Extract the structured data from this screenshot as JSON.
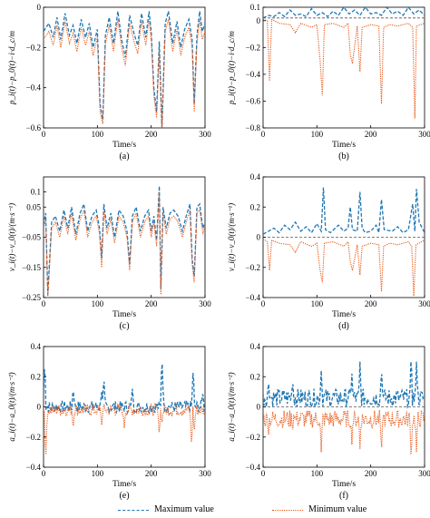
{
  "colors": {
    "max": "#1f77b4",
    "min": "#e8591a",
    "ref": "#555555"
  },
  "legend": [
    {
      "label": "Maximum value",
      "color": "#1f77b4",
      "dash": "dashed"
    },
    {
      "label": "Minimum value",
      "color": "#e8591a",
      "dash": "dotted"
    }
  ],
  "chart_data": [
    {
      "type": "line",
      "caption": "(a)",
      "xlabel": "Time/s",
      "ylabel": "p_i(t)−p_0(t)−i·d_c/m",
      "xlim": [
        0,
        300
      ],
      "ylim": [
        -0.6,
        0
      ],
      "xticks": [
        "0",
        "100",
        "200",
        "300"
      ],
      "xtick_values": [
        0,
        100,
        200,
        300
      ],
      "yticks": [
        "−0.6",
        "−0.4",
        "−0.2",
        "0"
      ],
      "ytick_values": [
        -0.6,
        -0.4,
        -0.2,
        0
      ],
      "series": [
        {
          "role": "max",
          "x": [
            0,
            10,
            18,
            25,
            32,
            40,
            48,
            55,
            62,
            70,
            78,
            85,
            92,
            100,
            105,
            110,
            115,
            122,
            130,
            138,
            145,
            152,
            160,
            168,
            175,
            182,
            190,
            196,
            200,
            205,
            210,
            215,
            220,
            226,
            232,
            240,
            248,
            255,
            262,
            270,
            276,
            280,
            285,
            290,
            295,
            300
          ],
          "y": [
            -0.12,
            -0.08,
            -0.15,
            -0.05,
            -0.16,
            -0.03,
            -0.14,
            -0.09,
            -0.18,
            -0.06,
            -0.15,
            -0.08,
            -0.2,
            -0.11,
            -0.48,
            -0.56,
            -0.14,
            -0.05,
            -0.18,
            -0.02,
            -0.16,
            -0.25,
            -0.04,
            -0.13,
            -0.19,
            -0.03,
            -0.15,
            -0.02,
            -0.12,
            -0.4,
            -0.52,
            -0.17,
            -0.6,
            -0.08,
            -0.02,
            -0.18,
            -0.07,
            -0.2,
            -0.11,
            -0.06,
            -0.16,
            -0.48,
            -0.14,
            -0.02,
            -0.12,
            -0.08
          ]
        },
        {
          "role": "min",
          "x": [
            0,
            10,
            18,
            25,
            32,
            40,
            48,
            55,
            62,
            70,
            78,
            85,
            92,
            100,
            105,
            110,
            115,
            122,
            130,
            138,
            145,
            152,
            160,
            168,
            175,
            182,
            190,
            196,
            200,
            205,
            210,
            215,
            220,
            226,
            232,
            240,
            248,
            255,
            262,
            270,
            276,
            280,
            285,
            290,
            295,
            300
          ],
          "y": [
            -0.16,
            -0.12,
            -0.19,
            -0.09,
            -0.2,
            -0.07,
            -0.18,
            -0.13,
            -0.22,
            -0.1,
            -0.19,
            -0.12,
            -0.24,
            -0.15,
            -0.52,
            -0.58,
            -0.18,
            -0.09,
            -0.22,
            -0.06,
            -0.2,
            -0.29,
            -0.08,
            -0.17,
            -0.23,
            -0.07,
            -0.19,
            -0.06,
            -0.16,
            -0.44,
            -0.55,
            -0.21,
            -0.62,
            -0.12,
            -0.06,
            -0.22,
            -0.11,
            -0.24,
            -0.15,
            -0.1,
            -0.2,
            -0.52,
            -0.18,
            -0.06,
            -0.16,
            -0.12
          ]
        }
      ]
    },
    {
      "type": "line",
      "caption": "(b)",
      "xlabel": "Time/s",
      "ylabel": "p_i(t)−p_0(t)−i·d_c/m",
      "xlim": [
        0,
        300
      ],
      "ylim": [
        -0.8,
        0.1
      ],
      "xticks": [
        "0",
        "100",
        "200",
        "300"
      ],
      "xtick_values": [
        0,
        100,
        200,
        300
      ],
      "yticks": [
        "−0.8",
        "−0.6",
        "−0.4",
        "−0.2",
        "0",
        "0.1"
      ],
      "ytick_values": [
        -0.8,
        -0.6,
        -0.4,
        -0.2,
        0,
        0.1
      ],
      "series": [
        {
          "role": "max",
          "x": [
            0,
            10,
            20,
            30,
            40,
            50,
            60,
            70,
            80,
            90,
            100,
            110,
            120,
            130,
            140,
            150,
            160,
            170,
            180,
            190,
            200,
            210,
            220,
            230,
            240,
            250,
            260,
            270,
            280,
            290,
            300
          ],
          "y": [
            0.02,
            0.04,
            0.03,
            0.06,
            0.03,
            0.08,
            0.04,
            0.05,
            0.03,
            0.09,
            0.04,
            0.06,
            0.03,
            0.07,
            0.04,
            0.1,
            0.05,
            0.08,
            0.04,
            0.1,
            0.05,
            0.06,
            0.04,
            0.1,
            0.05,
            0.07,
            0.04,
            0.1,
            0.05,
            0.08,
            0.04
          ]
        },
        {
          "role": "min",
          "x": [
            0,
            8,
            12,
            16,
            30,
            50,
            60,
            70,
            90,
            100,
            106,
            110,
            114,
            130,
            150,
            158,
            162,
            166,
            175,
            180,
            184,
            200,
            215,
            220,
            224,
            235,
            250,
            270,
            278,
            282,
            285,
            300
          ],
          "y": [
            0.01,
            0.0,
            -0.45,
            0.01,
            -0.02,
            -0.03,
            -0.09,
            -0.02,
            -0.05,
            -0.03,
            -0.3,
            -0.56,
            -0.03,
            -0.02,
            -0.05,
            -0.02,
            -0.25,
            -0.32,
            -0.04,
            -0.38,
            -0.05,
            -0.03,
            -0.04,
            -0.62,
            -0.05,
            -0.03,
            -0.04,
            -0.02,
            -0.05,
            -0.73,
            -0.04,
            -0.02
          ]
        }
      ],
      "reference_line": {
        "y": 0.02
      }
    },
    {
      "type": "line",
      "caption": "(c)",
      "xlabel": "Time/s",
      "ylabel": "v_i(t)−v_0(t)/(m·s⁻¹)",
      "xlim": [
        0,
        300
      ],
      "ylim": [
        -0.25,
        0.15
      ],
      "xticks": [
        "0",
        "100",
        "200",
        "300"
      ],
      "xtick_values": [
        0,
        100,
        200,
        300
      ],
      "yticks": [
        "−0.25",
        "−0.15",
        "−0.05",
        "0.05",
        "0.1"
      ],
      "ytick_values": [
        -0.25,
        -0.15,
        -0.05,
        0.05,
        0.1
      ],
      "series": [
        {
          "role": "max",
          "x": [
            0,
            4,
            8,
            15,
            22,
            30,
            38,
            45,
            52,
            60,
            68,
            75,
            82,
            90,
            98,
            104,
            108,
            112,
            118,
            125,
            132,
            140,
            148,
            155,
            160,
            165,
            172,
            180,
            188,
            195,
            200,
            205,
            210,
            215,
            218,
            222,
            228,
            235,
            242,
            250,
            258,
            265,
            272,
            276,
            280,
            285,
            290,
            296,
            300
          ],
          "y": [
            -0.01,
            0.03,
            -0.24,
            0.0,
            0.02,
            -0.03,
            0.04,
            -0.02,
            0.05,
            -0.04,
            0.03,
            0.06,
            -0.03,
            0.02,
            0.04,
            -0.02,
            -0.12,
            0.06,
            -0.02,
            0.03,
            -0.05,
            0.04,
            0.02,
            -0.03,
            -0.14,
            0.02,
            0.05,
            -0.03,
            0.02,
            0.04,
            -0.03,
            0.02,
            -0.06,
            0.12,
            -0.22,
            0.05,
            -0.02,
            0.03,
            0.04,
            0.02,
            -0.03,
            0.02,
            0.06,
            -0.12,
            -0.18,
            0.05,
            0.06,
            -0.02,
            0.0
          ]
        },
        {
          "role": "min",
          "x": [
            0,
            4,
            8,
            15,
            22,
            30,
            38,
            45,
            52,
            60,
            68,
            75,
            82,
            90,
            98,
            104,
            108,
            112,
            118,
            125,
            132,
            140,
            148,
            155,
            160,
            165,
            172,
            180,
            188,
            195,
            200,
            205,
            210,
            215,
            218,
            222,
            228,
            235,
            242,
            250,
            258,
            265,
            272,
            276,
            280,
            285,
            290,
            296,
            300
          ],
          "y": [
            -0.02,
            0.01,
            -0.25,
            -0.02,
            0.0,
            -0.05,
            0.02,
            -0.04,
            0.03,
            -0.06,
            0.01,
            0.04,
            -0.05,
            0.0,
            0.02,
            -0.04,
            -0.15,
            0.04,
            -0.04,
            0.01,
            -0.07,
            0.02,
            0.0,
            -0.05,
            -0.16,
            0.0,
            0.03,
            -0.05,
            0.0,
            0.02,
            -0.05,
            0.0,
            -0.08,
            0.1,
            -0.24,
            0.03,
            -0.04,
            0.01,
            0.02,
            0.0,
            -0.05,
            0.0,
            0.04,
            -0.14,
            -0.2,
            0.03,
            0.04,
            -0.04,
            -0.01
          ]
        }
      ]
    },
    {
      "type": "line",
      "caption": "(d)",
      "xlabel": "Time/s",
      "ylabel": "v_i(t)−v_0(t)/(m·s⁻¹)",
      "xlim": [
        0,
        300
      ],
      "ylim": [
        -0.4,
        0.4
      ],
      "xticks": [
        "0",
        "100",
        "200",
        "300"
      ],
      "xtick_values": [
        0,
        100,
        200,
        300
      ],
      "yticks": [
        "−0.4",
        "−0.2",
        "0",
        "0.2",
        "0.4"
      ],
      "ytick_values": [
        -0.4,
        -0.2,
        0,
        0.2,
        0.4
      ],
      "series": [
        {
          "role": "max",
          "x": [
            0,
            10,
            20,
            30,
            40,
            50,
            60,
            70,
            80,
            90,
            100,
            108,
            112,
            116,
            125,
            140,
            150,
            158,
            162,
            166,
            175,
            180,
            184,
            190,
            200,
            210,
            215,
            220,
            225,
            240,
            250,
            260,
            270,
            278,
            282,
            285,
            290,
            300
          ],
          "y": [
            0.02,
            0.04,
            0.06,
            0.03,
            0.08,
            0.05,
            0.1,
            0.04,
            0.07,
            0.03,
            0.09,
            0.04,
            0.33,
            0.05,
            0.03,
            0.08,
            0.04,
            0.06,
            0.2,
            0.05,
            0.04,
            0.3,
            0.06,
            0.03,
            0.04,
            0.08,
            0.03,
            0.25,
            0.05,
            0.04,
            0.07,
            0.03,
            0.05,
            0.22,
            0.04,
            0.32,
            0.1,
            0.03
          ]
        },
        {
          "role": "min",
          "x": [
            0,
            8,
            12,
            16,
            30,
            50,
            60,
            70,
            90,
            100,
            106,
            110,
            114,
            130,
            150,
            158,
            162,
            166,
            175,
            180,
            184,
            200,
            215,
            220,
            224,
            235,
            250,
            270,
            276,
            280,
            284,
            300
          ],
          "y": [
            -0.01,
            -0.03,
            -0.22,
            -0.02,
            -0.04,
            -0.05,
            -0.1,
            -0.03,
            -0.06,
            -0.04,
            -0.22,
            -0.3,
            -0.04,
            -0.03,
            -0.06,
            -0.03,
            -0.16,
            -0.22,
            -0.05,
            -0.25,
            -0.06,
            -0.04,
            -0.05,
            -0.36,
            -0.06,
            -0.04,
            -0.05,
            -0.03,
            -0.06,
            -0.39,
            -0.05,
            -0.02
          ]
        }
      ],
      "reference_line": {
        "y": 0
      }
    },
    {
      "type": "line",
      "caption": "(e)",
      "xlabel": "Time/s",
      "ylabel": "a_i(t)−a_0(t)/(m·s⁻²)",
      "xlim": [
        0,
        300
      ],
      "ylim": [
        -0.4,
        0.4
      ],
      "xticks": [
        "0",
        "100",
        "200",
        "300"
      ],
      "xtick_values": [
        0,
        100,
        200,
        300
      ],
      "yticks": [
        "−0.4",
        "−0.2",
        "0",
        "0.2",
        "0.4"
      ],
      "ytick_values": [
        -0.4,
        -0.2,
        0,
        0.2,
        0.4
      ],
      "series": [
        {
          "role": "max",
          "noise": 0.04,
          "base": 0.0,
          "spikes_x": [
            2,
            55,
            108,
            112,
            165,
            220,
            278,
            296
          ],
          "spikes_y": [
            0.3,
            0.12,
            0.1,
            0.2,
            0.12,
            0.34,
            0.27,
            0.1
          ]
        },
        {
          "role": "min",
          "noise": 0.04,
          "base": -0.02,
          "spikes_x": [
            4,
            55,
            108,
            150,
            215,
            220,
            275,
            280
          ],
          "spikes_y": [
            -0.38,
            -0.15,
            -0.12,
            -0.14,
            -0.2,
            -0.12,
            -0.28,
            -0.18
          ]
        }
      ]
    },
    {
      "type": "line",
      "caption": "(f)",
      "xlabel": "Time/s",
      "ylabel": "a_i(t)−a_0(t)/(m·s⁻²)",
      "xlim": [
        0,
        300
      ],
      "ylim": [
        -0.4,
        0.4
      ],
      "xticks": [
        "0",
        "100",
        "200",
        "300"
      ],
      "xtick_values": [
        0,
        100,
        200,
        300
      ],
      "yticks": [
        "−0.4",
        "−0.2",
        "0",
        "0.2",
        "0.4"
      ],
      "ytick_values": [
        -0.4,
        -0.2,
        0,
        0.2,
        0.4
      ],
      "series": [
        {
          "role": "max",
          "noise": 0.06,
          "base": 0.06,
          "spikes_x": [
            10,
            55,
            108,
            165,
            180,
            220,
            275,
            285
          ],
          "spikes_y": [
            0.18,
            0.18,
            0.24,
            0.22,
            0.3,
            0.26,
            0.36,
            0.3
          ]
        },
        {
          "role": "min",
          "noise": 0.06,
          "base": -0.08,
          "spikes_x": [
            10,
            55,
            108,
            165,
            180,
            220,
            275,
            285
          ],
          "spikes_y": [
            -0.22,
            -0.18,
            -0.3,
            -0.25,
            -0.28,
            -0.32,
            -0.38,
            -0.3
          ]
        }
      ],
      "reference_line": {
        "y": 0
      }
    }
  ]
}
